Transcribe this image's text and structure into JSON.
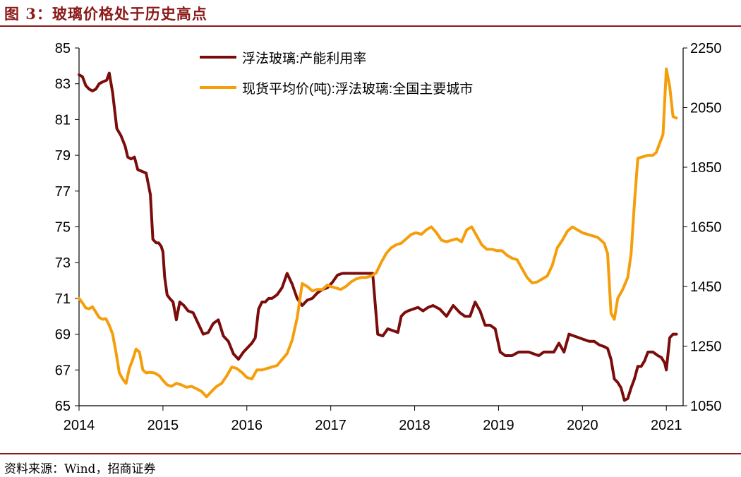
{
  "figure": {
    "title": "图 3：玻璃价格处于历史高点",
    "source": "资料来源：Wind，招商证券"
  },
  "colors": {
    "series1": "#7b0c0c",
    "series2": "#f59e0b",
    "axis": "#000000",
    "brand": "#8b1a1a"
  },
  "chart_data": {
    "type": "line",
    "title": "图 3：玻璃价格处于历史高点",
    "x_unit": "year",
    "xlim": [
      2014.0,
      2021.2
    ],
    "x_ticks": [
      2014,
      2015,
      2016,
      2017,
      2018,
      2019,
      2020,
      2021
    ],
    "x_tick_labels": [
      "2014",
      "2015",
      "2016",
      "2017",
      "2018",
      "2019",
      "2020",
      "2021"
    ],
    "y_left": {
      "lim": [
        65,
        85
      ],
      "ticks": [
        65,
        67,
        69,
        71,
        73,
        75,
        77,
        79,
        81,
        83,
        85
      ],
      "tick_labels": [
        "65",
        "67",
        "69",
        "71",
        "73",
        "75",
        "77",
        "79",
        "81",
        "83",
        "85"
      ]
    },
    "y_right": {
      "lim": [
        1050,
        2250
      ],
      "ticks": [
        1050,
        1250,
        1450,
        1650,
        1850,
        2050,
        2250
      ],
      "tick_labels": [
        "1050",
        "1250",
        "1450",
        "1650",
        "1850",
        "2050",
        "2250"
      ]
    },
    "legend_position": "top-center",
    "series": [
      {
        "name": "浮法玻璃:产能利用率",
        "axis": "left",
        "color": "#7b0c0c",
        "x": [
          2014.0,
          2014.04,
          2014.08,
          2014.12,
          2014.16,
          2014.2,
          2014.24,
          2014.28,
          2014.33,
          2014.36,
          2014.4,
          2014.45,
          2014.5,
          2014.55,
          2014.58,
          2014.62,
          2014.66,
          2014.7,
          2014.75,
          2014.8,
          2014.85,
          2014.88,
          2014.92,
          2014.95,
          2014.98,
          2015.0,
          2015.02,
          2015.05,
          2015.08,
          2015.12,
          2015.16,
          2015.2,
          2015.25,
          2015.3,
          2015.36,
          2015.42,
          2015.48,
          2015.54,
          2015.6,
          2015.66,
          2015.72,
          2015.78,
          2015.84,
          2015.9,
          2015.96,
          2016.02,
          2016.06,
          2016.1,
          2016.14,
          2016.18,
          2016.22,
          2016.26,
          2016.3,
          2016.36,
          2016.42,
          2016.48,
          2016.54,
          2016.6,
          2016.66,
          2016.72,
          2016.78,
          2016.84,
          2016.9,
          2016.96,
          2017.02,
          2017.08,
          2017.14,
          2017.2,
          2017.26,
          2017.32,
          2017.38,
          2017.44,
          2017.5,
          2017.56,
          2017.62,
          2017.68,
          2017.74,
          2017.8,
          2017.84,
          2017.88,
          2017.92,
          2017.98,
          2018.04,
          2018.1,
          2018.16,
          2018.22,
          2018.3,
          2018.38,
          2018.46,
          2018.54,
          2018.6,
          2018.66,
          2018.72,
          2018.78,
          2018.84,
          2018.9,
          2018.96,
          2019.02,
          2019.08,
          2019.16,
          2019.24,
          2019.3,
          2019.36,
          2019.42,
          2019.48,
          2019.54,
          2019.6,
          2019.66,
          2019.72,
          2019.78,
          2019.84,
          2019.9,
          2019.96,
          2020.02,
          2020.08,
          2020.14,
          2020.2,
          2020.26,
          2020.3,
          2020.34,
          2020.38,
          2020.42,
          2020.46,
          2020.5,
          2020.54,
          2020.58,
          2020.62,
          2020.66,
          2020.7,
          2020.74,
          2020.78,
          2020.84,
          2020.9,
          2020.94,
          2020.98,
          2021.0,
          2021.04,
          2021.08,
          2021.12
        ],
        "values": [
          83.5,
          83.4,
          82.9,
          82.7,
          82.6,
          82.7,
          83.0,
          83.1,
          83.2,
          83.6,
          82.5,
          80.5,
          80.1,
          79.5,
          78.9,
          78.8,
          78.9,
          78.2,
          78.1,
          78.0,
          76.8,
          74.3,
          74.1,
          74.1,
          73.9,
          73.6,
          72.2,
          71.2,
          71.0,
          70.8,
          69.8,
          70.8,
          70.6,
          70.3,
          70.2,
          69.6,
          69.0,
          69.1,
          69.6,
          69.8,
          68.9,
          68.6,
          67.9,
          67.6,
          68.0,
          68.3,
          68.5,
          68.8,
          70.4,
          70.8,
          70.8,
          71.0,
          71.0,
          71.2,
          71.6,
          72.4,
          71.8,
          71.0,
          70.6,
          70.9,
          71.0,
          71.3,
          71.5,
          71.6,
          71.9,
          72.3,
          72.4,
          72.4,
          72.4,
          72.4,
          72.4,
          72.4,
          72.4,
          69.0,
          68.9,
          69.3,
          69.2,
          69.1,
          70.0,
          70.2,
          70.3,
          70.4,
          70.5,
          70.3,
          70.5,
          70.6,
          70.4,
          70.0,
          70.6,
          70.2,
          70.0,
          70.0,
          70.8,
          70.3,
          69.5,
          69.5,
          69.3,
          68.0,
          67.8,
          67.8,
          68.0,
          68.0,
          68.0,
          67.9,
          67.8,
          68.0,
          68.0,
          68.0,
          68.5,
          68.0,
          69.0,
          68.9,
          68.8,
          68.7,
          68.6,
          68.6,
          68.4,
          68.3,
          68.2,
          67.6,
          66.5,
          66.3,
          66.0,
          65.3,
          65.4,
          66.0,
          66.5,
          67.2,
          67.2,
          67.5,
          68.0,
          68.0,
          67.8,
          67.7,
          67.4,
          67.0,
          68.8,
          69.0,
          69.0
        ],
        "values_unit": "%"
      },
      {
        "name": "现货平均价(吨):浮法玻璃:全国主要城市",
        "axis": "right",
        "color": "#f59e0b",
        "x": [
          2014.0,
          2014.04,
          2014.08,
          2014.12,
          2014.16,
          2014.2,
          2014.24,
          2014.28,
          2014.32,
          2014.36,
          2014.4,
          2014.44,
          2014.48,
          2014.52,
          2014.56,
          2014.6,
          2014.64,
          2014.68,
          2014.72,
          2014.76,
          2014.8,
          2014.84,
          2014.9,
          2014.96,
          2015.0,
          2015.05,
          2015.1,
          2015.16,
          2015.22,
          2015.28,
          2015.34,
          2015.4,
          2015.46,
          2015.52,
          2015.58,
          2015.64,
          2015.7,
          2015.76,
          2015.82,
          2015.88,
          2015.94,
          2016.0,
          2016.06,
          2016.12,
          2016.18,
          2016.24,
          2016.3,
          2016.36,
          2016.42,
          2016.48,
          2016.54,
          2016.6,
          2016.66,
          2016.72,
          2016.78,
          2016.84,
          2016.9,
          2016.96,
          2017.0,
          2017.06,
          2017.12,
          2017.18,
          2017.24,
          2017.3,
          2017.36,
          2017.42,
          2017.48,
          2017.54,
          2017.6,
          2017.66,
          2017.72,
          2017.78,
          2017.84,
          2017.9,
          2017.96,
          2018.02,
          2018.08,
          2018.14,
          2018.2,
          2018.26,
          2018.32,
          2018.38,
          2018.44,
          2018.5,
          2018.56,
          2018.62,
          2018.68,
          2018.74,
          2018.8,
          2018.86,
          2018.92,
          2018.98,
          2019.04,
          2019.1,
          2019.16,
          2019.22,
          2019.28,
          2019.34,
          2019.4,
          2019.46,
          2019.52,
          2019.58,
          2019.64,
          2019.7,
          2019.76,
          2019.82,
          2019.88,
          2019.94,
          2020.0,
          2020.06,
          2020.12,
          2020.18,
          2020.22,
          2020.26,
          2020.3,
          2020.34,
          2020.38,
          2020.42,
          2020.48,
          2020.54,
          2020.58,
          2020.62,
          2020.66,
          2020.72,
          2020.78,
          2020.84,
          2020.88,
          2020.92,
          2020.96,
          2021.0,
          2021.04,
          2021.08,
          2021.12
        ],
        "values": [
          1410,
          1395,
          1378,
          1375,
          1382,
          1364,
          1346,
          1340,
          1342,
          1320,
          1290,
          1230,
          1160,
          1140,
          1125,
          1175,
          1205,
          1240,
          1230,
          1170,
          1160,
          1162,
          1160,
          1150,
          1135,
          1120,
          1115,
          1125,
          1120,
          1112,
          1115,
          1107,
          1098,
          1080,
          1098,
          1115,
          1125,
          1150,
          1180,
          1175,
          1162,
          1145,
          1140,
          1170,
          1170,
          1175,
          1180,
          1185,
          1205,
          1225,
          1270,
          1345,
          1460,
          1450,
          1435,
          1440,
          1440,
          1455,
          1450,
          1445,
          1440,
          1450,
          1465,
          1475,
          1480,
          1480,
          1485,
          1495,
          1530,
          1560,
          1580,
          1590,
          1595,
          1610,
          1625,
          1630,
          1625,
          1640,
          1650,
          1630,
          1605,
          1600,
          1605,
          1610,
          1600,
          1640,
          1650,
          1620,
          1590,
          1575,
          1575,
          1570,
          1570,
          1555,
          1545,
          1540,
          1510,
          1480,
          1462,
          1465,
          1475,
          1485,
          1520,
          1580,
          1605,
          1635,
          1650,
          1640,
          1630,
          1625,
          1620,
          1615,
          1605,
          1595,
          1560,
          1360,
          1340,
          1410,
          1440,
          1480,
          1560,
          1730,
          1880,
          1885,
          1890,
          1890,
          1900,
          1930,
          1960,
          2180,
          2120,
          2020,
          2015
        ],
        "values_unit": "元/吨"
      }
    ]
  }
}
